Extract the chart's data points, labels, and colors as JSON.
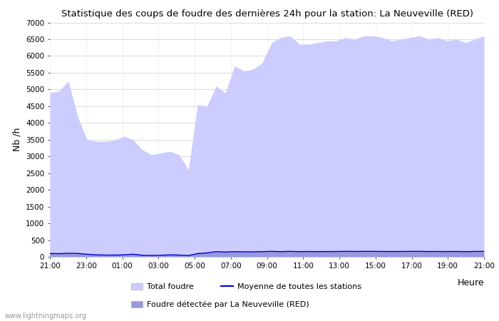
{
  "title": "Statistique des coups de foudre des dernières 24h pour la station: La Neuveville (RED)",
  "xlabel": "Heure",
  "ylabel": "Nb /h",
  "watermark": "www.lightningmaps.org",
  "yticks": [
    0,
    500,
    1000,
    1500,
    2000,
    2500,
    3000,
    3500,
    4000,
    4500,
    5000,
    5500,
    6000,
    6500,
    7000
  ],
  "xtick_labels": [
    "21:00",
    "23:00",
    "01:00",
    "03:00",
    "05:00",
    "07:00",
    "09:00",
    "11:00",
    "13:00",
    "15:00",
    "17:00",
    "19:00",
    "21:00"
  ],
  "total_foudre_color": "#ccccff",
  "local_foudre_color": "#9999dd",
  "moyenne_color": "#0000cc",
  "background_color": "#ffffff",
  "grid_color": "#cccccc",
  "total_foudre_y": [
    4900,
    4950,
    5250,
    4200,
    3500,
    3450,
    3450,
    3480,
    3600,
    3500,
    3200,
    3050,
    3100,
    3150,
    3050,
    2600,
    4550,
    4500,
    5100,
    4900,
    5700,
    5550,
    5600,
    5800,
    6400,
    6550,
    6600,
    6350,
    6350,
    6400,
    6450,
    6450,
    6550,
    6500,
    6600,
    6600,
    6550,
    6450,
    6500,
    6550,
    6600,
    6500,
    6550,
    6450,
    6500,
    6400,
    6500,
    6600
  ],
  "local_foudre_y": [
    100,
    100,
    110,
    100,
    80,
    60,
    55,
    55,
    60,
    80,
    50,
    40,
    50,
    60,
    55,
    40,
    100,
    120,
    160,
    150,
    160,
    155,
    155,
    160,
    170,
    160,
    170,
    160,
    165,
    160,
    165,
    165,
    170,
    168,
    170,
    170,
    168,
    165,
    168,
    170,
    170,
    165,
    168,
    165,
    168,
    162,
    168,
    170
  ],
  "moyenne_y": [
    100,
    95,
    105,
    100,
    78,
    58,
    52,
    52,
    58,
    78,
    47,
    38,
    47,
    58,
    52,
    38,
    97,
    115,
    155,
    143,
    155,
    148,
    148,
    155,
    163,
    155,
    163,
    155,
    158,
    155,
    158,
    158,
    163,
    160,
    163,
    163,
    160,
    158,
    160,
    163,
    163,
    158,
    160,
    158,
    160,
    155,
    160,
    163
  ],
  "n_points": 48,
  "legend_labels": [
    "Total foudre",
    "Foudre détectée par La Neuveville (RED)",
    "Moyenne de toutes les stations"
  ]
}
